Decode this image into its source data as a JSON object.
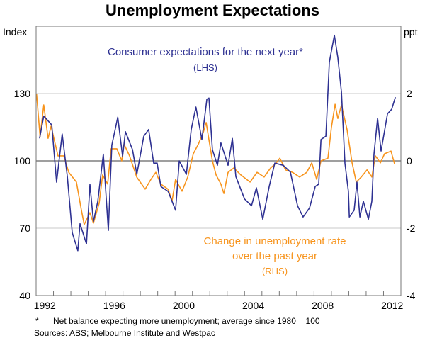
{
  "chart_data": {
    "type": "line",
    "title": "Unemployment Expectations",
    "left_axis": {
      "label": "Index",
      "range": [
        40,
        160
      ],
      "ticks": [
        130,
        100,
        70,
        40
      ]
    },
    "right_axis": {
      "label": "ppt",
      "range": [
        -4,
        4
      ],
      "ticks": [
        2,
        0,
        -2,
        -4
      ]
    },
    "x_axis": {
      "range": [
        1992,
        2013
      ],
      "tick_labels": [
        "1992",
        "1996",
        "2000",
        "2004",
        "2008",
        "2012"
      ]
    },
    "grid": true,
    "series": [
      {
        "name": "Consumer expectations for the next year*",
        "axis_note": "(LHS)",
        "axis": "left",
        "color": "#2e3192",
        "x": [
          1992.2,
          1992.44,
          1992.9,
          1993.18,
          1993.5,
          1993.8,
          1994.08,
          1994.4,
          1994.53,
          1994.9,
          1995.1,
          1995.3,
          1995.55,
          1995.87,
          1996.16,
          1996.36,
          1996.7,
          1996.98,
          1997.14,
          1997.55,
          1997.8,
          1998.2,
          1998.48,
          1998.77,
          1998.97,
          1999.18,
          1999.6,
          2000.03,
          2000.24,
          2000.65,
          2000.93,
          2001.2,
          2001.54,
          2001.83,
          2001.95,
          2002.15,
          2002.44,
          2002.64,
          2003.05,
          2003.3,
          2003.5,
          2004.0,
          2004.4,
          2004.68,
          2005.05,
          2005.42,
          2005.74,
          2006.23,
          2006.64,
          2007.05,
          2007.37,
          2007.74,
          2008.07,
          2008.27,
          2008.4,
          2008.68,
          2008.88,
          2009.17,
          2009.37,
          2009.58,
          2009.78,
          2009.98,
          2010.03,
          2010.31,
          2010.47,
          2010.64,
          2010.84,
          2011.13,
          2011.33,
          2011.45,
          2011.66,
          2011.86,
          2012.23,
          2012.47,
          2012.68
        ],
        "values": [
          110,
          120,
          116,
          90.5,
          112,
          93,
          68,
          60,
          72,
          63,
          89.5,
          73,
          82,
          103,
          69,
          107,
          119.5,
          102,
          113,
          105,
          94,
          111,
          114,
          99,
          99,
          88.6,
          86.4,
          78,
          100,
          94,
          114,
          124,
          109.5,
          127.5,
          128,
          105,
          98,
          108,
          98,
          110,
          93,
          83,
          80,
          88,
          74,
          88.6,
          99,
          98,
          95,
          80,
          75,
          79,
          88.6,
          89.6,
          109.5,
          111,
          144,
          156,
          146,
          130.6,
          99,
          86.4,
          75,
          78,
          90.5,
          75,
          82,
          74,
          82,
          103,
          119,
          104.4,
          121,
          123,
          128.4
        ]
      },
      {
        "name": "Change in unemployment rate over the past year",
        "name_lines": [
          "Change in unemployment rate",
          "over the past year"
        ],
        "axis_note": "(RHS)",
        "axis": "right",
        "color": "#f7941d",
        "x": [
          1992.03,
          1992.23,
          1992.44,
          1992.69,
          1992.86,
          1993.26,
          1993.59,
          1993.88,
          1994.32,
          1994.61,
          1994.77,
          1995.1,
          1995.3,
          1995.63,
          1995.83,
          1996.12,
          1996.32,
          1996.65,
          1996.93,
          1997.06,
          1997.38,
          1997.79,
          1998.28,
          1998.61,
          1998.89,
          1999.18,
          1999.59,
          1999.83,
          2000.03,
          2000.4,
          2000.73,
          2001.05,
          2001.34,
          2001.62,
          2001.79,
          2001.95,
          2002.15,
          2002.36,
          2002.64,
          2002.81,
          2003.05,
          2003.38,
          2003.79,
          2004.32,
          2004.72,
          2005.13,
          2005.5,
          2005.83,
          2006.03,
          2006.36,
          2006.76,
          2007.17,
          2007.58,
          2007.87,
          2008.15,
          2008.4,
          2008.8,
          2009.0,
          2009.21,
          2009.37,
          2009.58,
          2009.9,
          2010.19,
          2010.43,
          2010.72,
          2011.05,
          2011.33,
          2011.53,
          2011.82,
          2012.06,
          2012.43,
          2012.64
        ],
        "values": [
          1.98,
          0.72,
          1.66,
          0.67,
          1.03,
          0.15,
          0.15,
          -0.34,
          -0.63,
          -1.47,
          -1.89,
          -1.54,
          -1.85,
          -1.26,
          -0.42,
          -0.69,
          0.36,
          0.36,
          0,
          0.5,
          0.15,
          -0.48,
          -0.84,
          -0.55,
          -0.34,
          -0.69,
          -0.84,
          -1.18,
          -0.55,
          -0.9,
          -0.48,
          0.21,
          0.5,
          0.84,
          1.14,
          0.63,
          0,
          -0.42,
          -0.69,
          -0.97,
          -0.34,
          -0.21,
          -0.42,
          -0.63,
          -0.34,
          -0.48,
          -0.21,
          -0.06,
          0.08,
          -0.27,
          -0.34,
          -0.48,
          -0.34,
          -0.06,
          -0.55,
          0,
          0.08,
          0.99,
          1.68,
          1.26,
          1.66,
          0.93,
          -0.06,
          -0.63,
          -0.48,
          -0.27,
          -0.48,
          0.15,
          -0.06,
          0.21,
          0.29,
          -0.1
        ]
      }
    ],
    "footnote": "Net balance expecting more unemployment; average since 1980 = 100",
    "footnote_marker": "*",
    "sources": "Sources: ABS; Melbourne Institute and Westpac"
  }
}
